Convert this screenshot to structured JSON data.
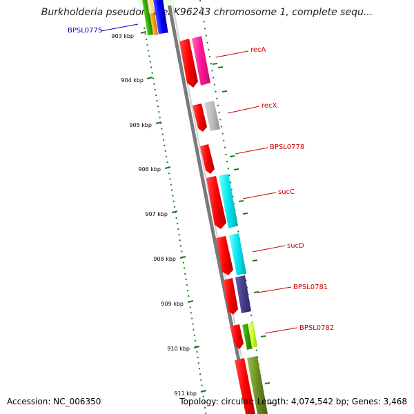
{
  "title": "Burkholderia pseudomallei K96243 chromosome 1, complete sequ...",
  "footer": {
    "accession": "Accession: NC_006350",
    "summary": "Topology: circular; Length: 4,074,542 bp; Genes: 3,468"
  },
  "colors": {
    "forward_strand": "#ff0000",
    "tick": "#1a7a1a",
    "label_red": "#cc0000",
    "label_blue": "#0000bb"
  },
  "kbp_labels": [
    "903 kbp",
    "904 kbp",
    "905 kbp",
    "906 kbp",
    "907 kbp",
    "908 kbp",
    "909 kbp",
    "910 kbp",
    "911 kbp"
  ],
  "genes": [
    {
      "name": "BPSL0775",
      "color": "#0000bb"
    },
    {
      "name": "recA",
      "color": "#cc0000"
    },
    {
      "name": "recX",
      "color": "#cc0000"
    },
    {
      "name": "BPSL0778",
      "color": "#cc0000"
    },
    {
      "name": "sucC",
      "color": "#cc0000"
    },
    {
      "name": "sucD",
      "color": "#cc0000"
    },
    {
      "name": "BPSL0781",
      "color": "#cc0000"
    },
    {
      "name": "BPSL0782",
      "color": "#cc0000"
    }
  ]
}
